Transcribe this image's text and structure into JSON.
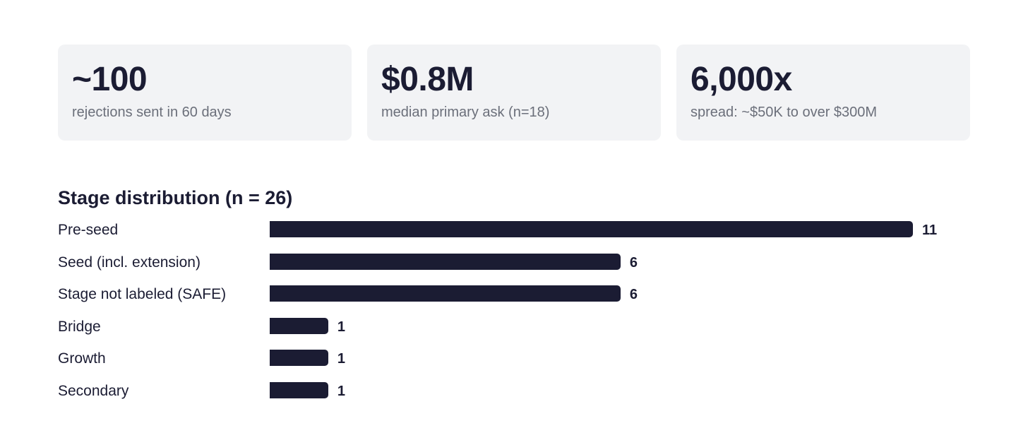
{
  "stats": [
    {
      "value": "~100",
      "caption": "rejections sent in 60 days"
    },
    {
      "value": "$0.8M",
      "caption": "median primary ask (n=18)"
    },
    {
      "value": "6,000x",
      "caption": "spread: ~$50K to over $300M"
    }
  ],
  "colors": {
    "bar": "#1b1c33",
    "card_background": "#f2f3f5",
    "caption_text": "#6b6f7a"
  },
  "chart_data": {
    "type": "bar",
    "orientation": "horizontal",
    "title": "Stage distribution (n = 26)",
    "xlabel": "",
    "ylabel": "",
    "categories": [
      "Pre-seed",
      "Seed (incl. extension)",
      "Stage not labeled (SAFE)",
      "Bridge",
      "Growth",
      "Secondary"
    ],
    "values": [
      11,
      6,
      6,
      1,
      1,
      1
    ],
    "xlim": [
      0,
      11
    ],
    "grid": false,
    "legend": "none",
    "data_labels": true
  }
}
